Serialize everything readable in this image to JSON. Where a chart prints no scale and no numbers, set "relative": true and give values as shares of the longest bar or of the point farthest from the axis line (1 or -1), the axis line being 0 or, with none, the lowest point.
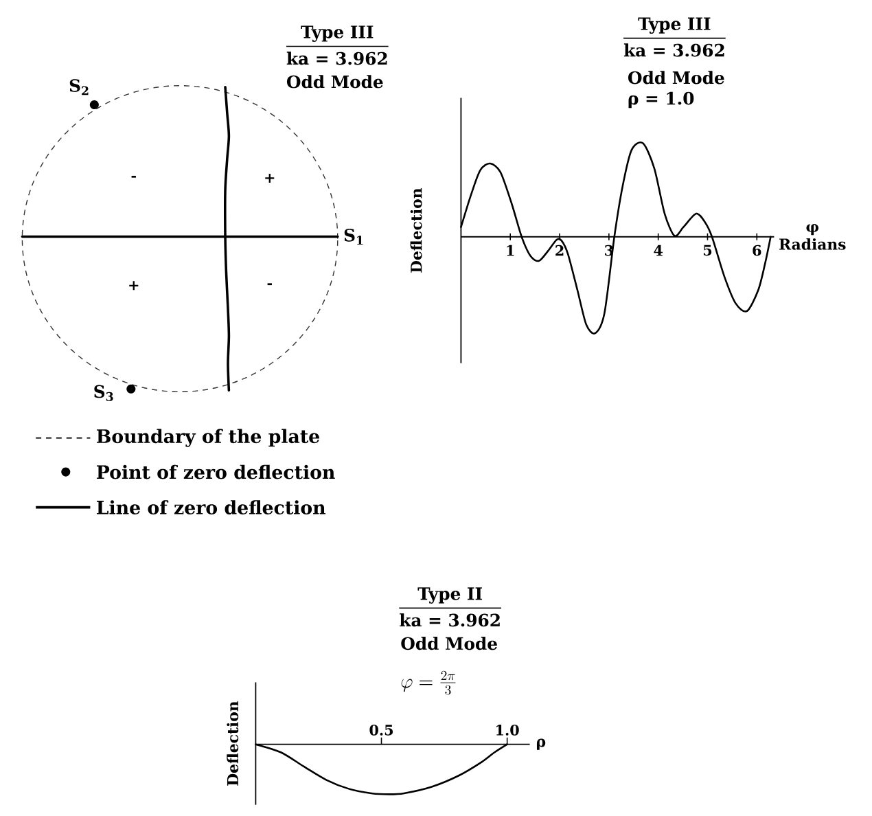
{
  "chart_data": [
    {
      "type": "other",
      "title": "Type III",
      "subtitle": "ka = 3.962",
      "annotations": [
        "Odd Mode",
        "S$_{1}$",
        "S$_{2}$",
        "S$_{3}$",
        "-",
        "+",
        "+",
        "-",
        "Boundary of the plate",
        "Point of zero deflection",
        "Line of zero deflection"
      ]
    },
    {
      "type": "line",
      "relative": true,
      "title": "Type III",
      "subtitle": "ka = 3.962",
      "annotations": [
        "Odd Mode",
        "ρ = 1.0"
      ],
      "xlabel": "φ Radians",
      "ylabel": "Deflection",
      "xlim": [
        0,
        6.35
      ],
      "xticks": [
        1,
        2,
        3,
        4,
        5,
        6
      ],
      "color": "#000000",
      "x": [
        0,
        0.2,
        0.39,
        0.59,
        0.8,
        1.03,
        1.23,
        1.41,
        1.58,
        1.76,
        1.94,
        2.04,
        2.17,
        2.36,
        2.54,
        2.72,
        2.91,
        3.11,
        3.28,
        3.46,
        3.69,
        3.92,
        4.13,
        4.33,
        4.51,
        4.77,
        4.95,
        5.09,
        5.34,
        5.57,
        5.8,
        6.03,
        6.17,
        6.28
      ],
      "values": [
        0.1,
        0.43,
        0.69,
        0.76,
        0.67,
        0.34,
        0,
        -0.2,
        -0.25,
        -0.15,
        -0.03,
        -0.04,
        -0.18,
        -0.55,
        -0.91,
        -1,
        -0.79,
        0,
        0.53,
        0.9,
        0.97,
        0.71,
        0.24,
        0.01,
        0.1,
        0.24,
        0.15,
        0,
        -0.41,
        -0.69,
        -0.77,
        -0.55,
        -0.27,
        0
      ]
    },
    {
      "type": "line",
      "relative": true,
      "title": "Type II",
      "subtitle": "ka = 3.962",
      "annotations": [
        "Odd Mode",
        "\\varphi = \\frac{2\\pi}{3}"
      ],
      "xlabel": "ρ",
      "ylabel": "Deflection",
      "xlim": [
        0,
        1.09
      ],
      "xticks": [
        0.5,
        {
          "value": 1,
          "label": "1.0"
        }
      ],
      "color": "#000000",
      "x": [
        0,
        0.1,
        0.19,
        0.28,
        0.37,
        0.46,
        0.53,
        0.59,
        0.7,
        0.81,
        0.9,
        0.95,
        1
      ],
      "values": [
        0,
        -0.16,
        -0.44,
        -0.71,
        -0.89,
        -0.98,
        -1,
        -0.98,
        -0.85,
        -0.62,
        -0.35,
        -0.16,
        0
      ]
    }
  ]
}
